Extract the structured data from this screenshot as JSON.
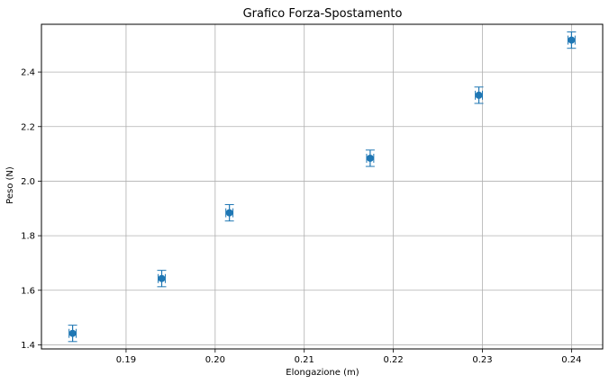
{
  "chart_data": {
    "type": "scatter",
    "title": "Grafico Forza-Spostamento",
    "xlabel": "Elongazione (m)",
    "ylabel": "Peso (N)",
    "xlim": [
      0.1805,
      0.2435
    ],
    "ylim": [
      1.385,
      2.575
    ],
    "xticks": [
      0.19,
      0.2,
      0.21,
      0.22,
      0.23,
      0.24
    ],
    "xtick_labels": [
      "0.19",
      "0.20",
      "0.21",
      "0.22",
      "0.23",
      "0.24"
    ],
    "yticks": [
      1.4,
      1.6,
      1.8,
      2.0,
      2.2,
      2.4
    ],
    "ytick_labels": [
      "1.4",
      "1.6",
      "1.8",
      "2.0",
      "2.2",
      "2.4"
    ],
    "grid": true,
    "marker_color": "#1f77b4",
    "series": [
      {
        "x": [
          0.184,
          0.194,
          0.2016,
          0.2174,
          0.2296,
          0.24
        ],
        "y": [
          1.442,
          1.643,
          1.884,
          2.084,
          2.315,
          2.517
        ],
        "x_err": [
          0.0004,
          0.0004,
          0.0004,
          0.0004,
          0.0004,
          0.0004
        ],
        "y_err": [
          0.03,
          0.03,
          0.03,
          0.03,
          0.03,
          0.03
        ]
      }
    ]
  }
}
